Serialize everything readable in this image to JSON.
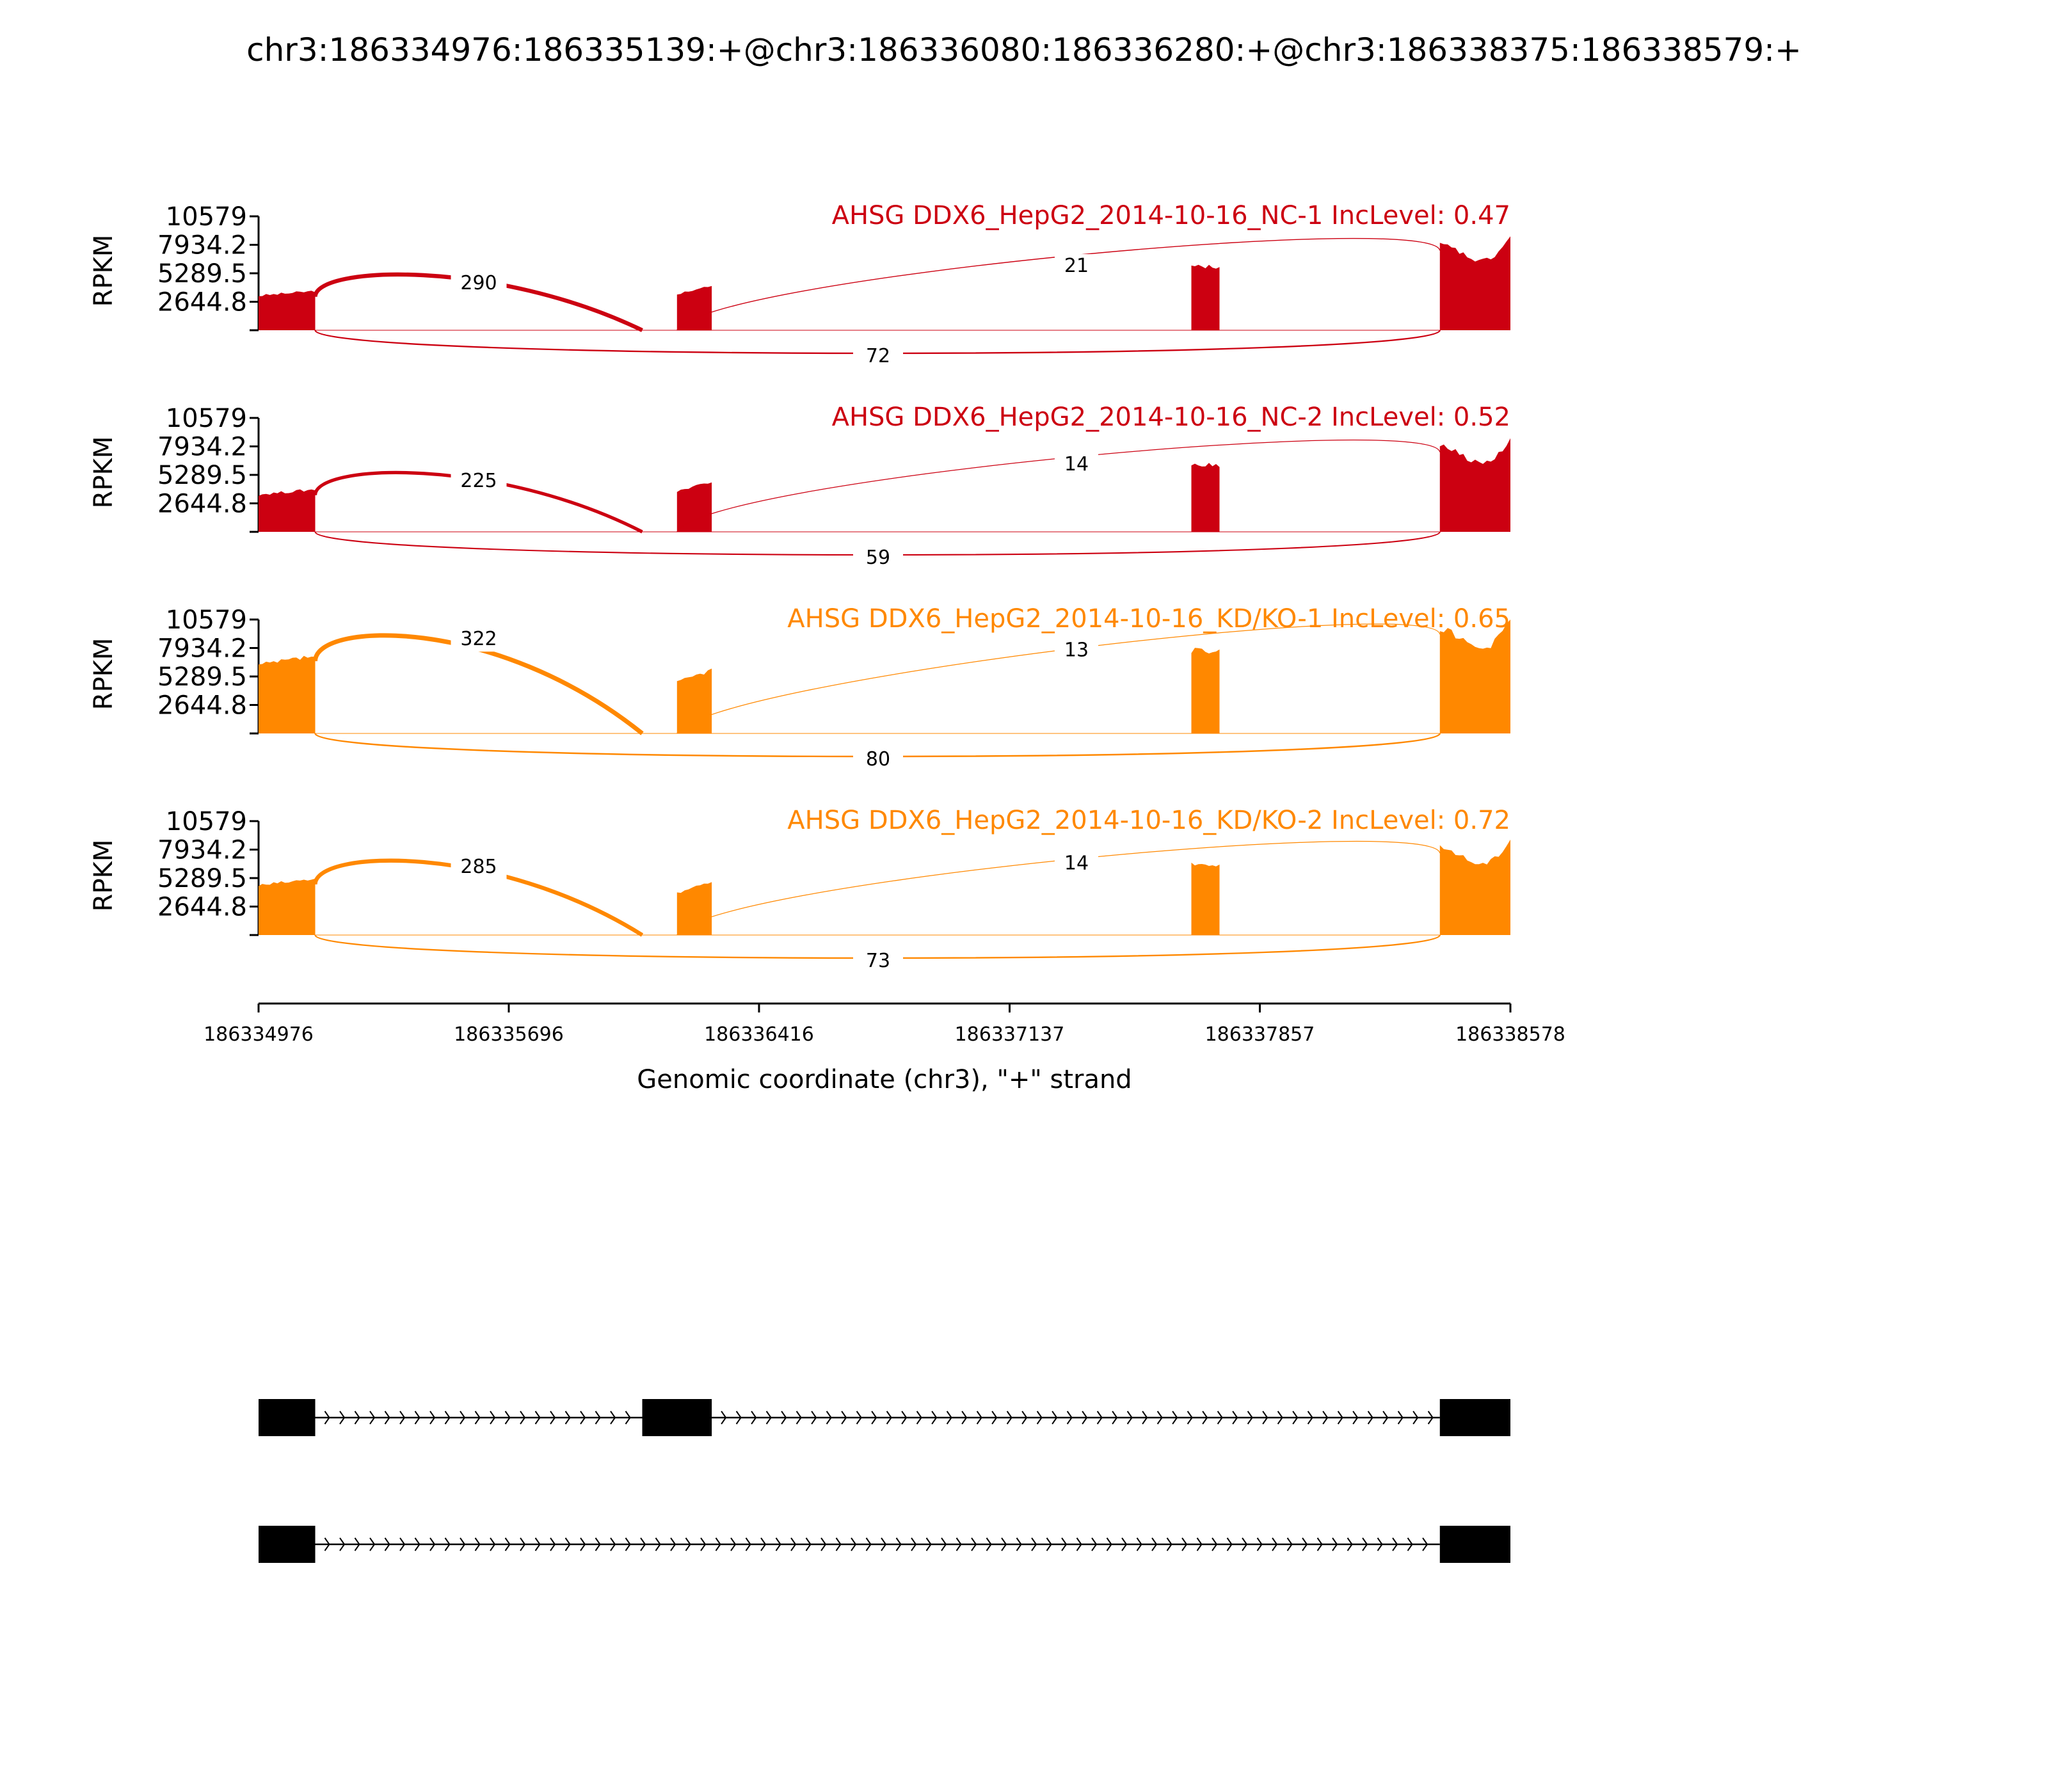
{
  "chart_data": {
    "type": "sashimi",
    "title": "chr3:186334976:186335139:+@chr3:186336080:186336280:+@chr3:186338375:186338579:+",
    "xlabel": "Genomic coordinate (chr3), \"+\" strand",
    "ylabel": "RPKM",
    "xlim": [
      186334976,
      186338578
    ],
    "xticks": [
      186334976,
      186335696,
      186336416,
      186337137,
      186337857,
      186338578
    ],
    "yticks": [
      2644.8,
      5289.5,
      7934.2,
      10579
    ],
    "ylim": [
      0,
      10579
    ],
    "exons": [
      {
        "start": 186334976,
        "end": 186335139
      },
      {
        "start": 186336080,
        "end": 186336280
      },
      {
        "start": 186338375,
        "end": 186338579
      }
    ],
    "coverage_regions": [
      {
        "start": 186334976,
        "end": 186335139
      },
      {
        "start": 186336180,
        "end": 186336280
      },
      {
        "start": 186337660,
        "end": 186337741
      },
      {
        "start": 186338375,
        "end": 186338578
      }
    ],
    "series": [
      {
        "name": "AHSG DDX6_HepG2_2014-10-16_NC-1 IncLevel: 0.47",
        "color": "#cc0011",
        "coverage": [
          3700,
          4200,
          6000,
          8000
        ],
        "junctions": [
          {
            "from": 186335139,
            "to": 186336080,
            "count": 290,
            "side": "above"
          },
          {
            "from": 186336280,
            "to": 186338375,
            "count": 21,
            "side": "above"
          },
          {
            "from": 186335139,
            "to": 186338375,
            "count": 72,
            "side": "below"
          }
        ]
      },
      {
        "name": "AHSG DDX6_HepG2_2014-10-16_NC-2 IncLevel: 0.52",
        "color": "#cc0011",
        "coverage": [
          4000,
          4800,
          6300,
          8000
        ],
        "junctions": [
          {
            "from": 186335139,
            "to": 186336080,
            "count": 225,
            "side": "above"
          },
          {
            "from": 186336280,
            "to": 186338375,
            "count": 14,
            "side": "above"
          },
          {
            "from": 186335139,
            "to": 186338375,
            "count": 59,
            "side": "below"
          }
        ]
      },
      {
        "name": "AHSG DDX6_HepG2_2014-10-16_KD/KO-1 IncLevel: 0.65",
        "color": "#ff8800",
        "coverage": [
          7300,
          6000,
          7800,
          9800
        ],
        "junctions": [
          {
            "from": 186335139,
            "to": 186336080,
            "count": 322,
            "side": "above"
          },
          {
            "from": 186336280,
            "to": 186338375,
            "count": 13,
            "side": "above"
          },
          {
            "from": 186335139,
            "to": 186338375,
            "count": 80,
            "side": "below"
          }
        ]
      },
      {
        "name": "AHSG DDX6_HepG2_2014-10-16_KD/KO-2 IncLevel: 0.72",
        "color": "#ff8800",
        "coverage": [
          5300,
          5000,
          6700,
          8200
        ],
        "junctions": [
          {
            "from": 186335139,
            "to": 186336080,
            "count": 285,
            "side": "above"
          },
          {
            "from": 186336280,
            "to": 186338375,
            "count": 14,
            "side": "above"
          },
          {
            "from": 186335139,
            "to": 186338375,
            "count": 73,
            "side": "below"
          }
        ]
      }
    ],
    "isoforms": [
      {
        "exons": [
          [
            186334976,
            186335139
          ],
          [
            186336080,
            186336280
          ],
          [
            186338375,
            186338579
          ]
        ]
      },
      {
        "exons": [
          [
            186334976,
            186335139
          ],
          [
            186338375,
            186338579
          ]
        ]
      }
    ]
  }
}
